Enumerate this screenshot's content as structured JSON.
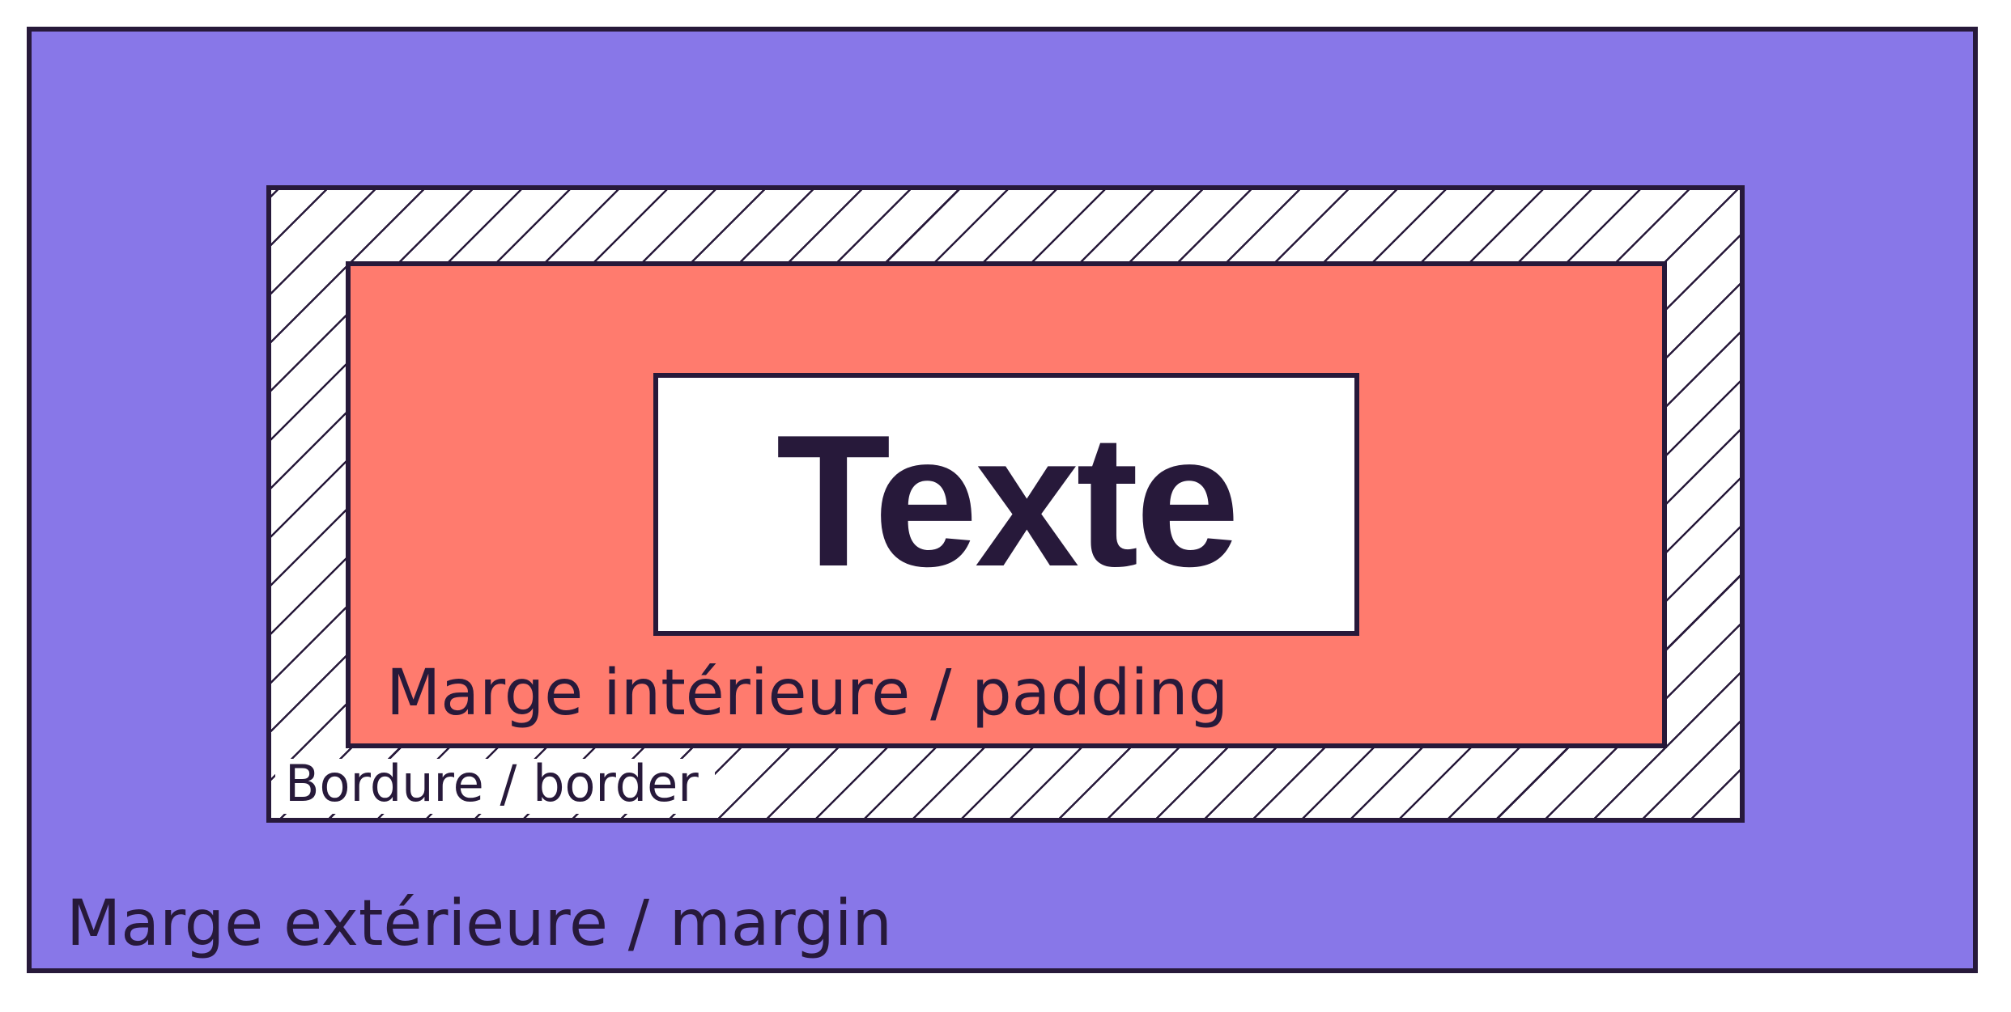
{
  "diagram": {
    "content": {
      "text": "Texte",
      "color": "#ffffff"
    },
    "padding": {
      "label": "Marge intérieure / padding",
      "color": "#ff7b6e"
    },
    "border": {
      "label": "Bordure / border",
      "pattern": "diagonal-hatch"
    },
    "margin": {
      "label": "Marge extérieure / margin",
      "color": "#8877e8"
    },
    "outline_color": "#27193a"
  }
}
